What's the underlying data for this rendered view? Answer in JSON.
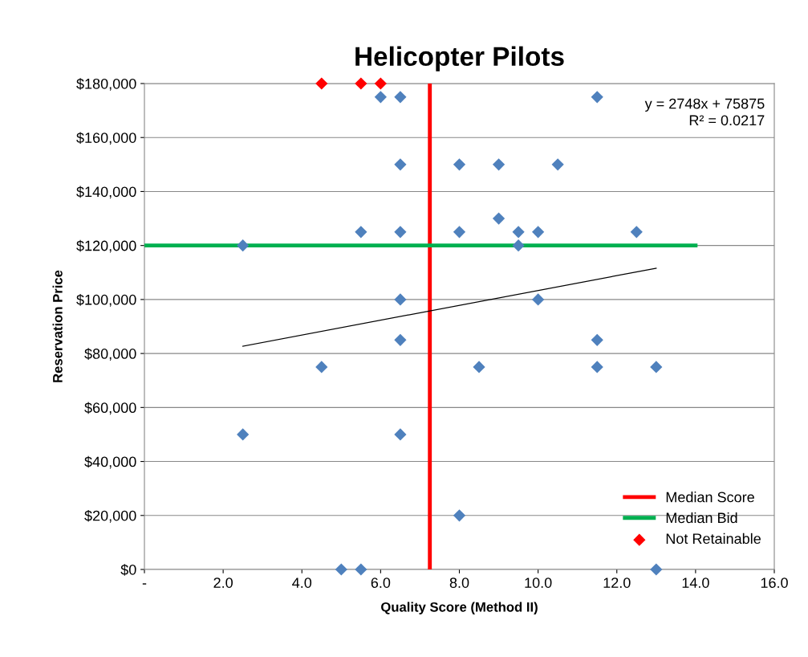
{
  "chart_data": {
    "type": "scatter",
    "title": "Helicopter Pilots",
    "xlabel": "Quality Score (Method II)",
    "ylabel": "Reservation Price",
    "xlim": [
      0,
      16
    ],
    "xticks": [
      {
        "value": 0,
        "label": "-"
      },
      {
        "value": 2,
        "label": "2.0"
      },
      {
        "value": 4,
        "label": "4.0"
      },
      {
        "value": 6,
        "label": "6.0"
      },
      {
        "value": 8,
        "label": "8.0"
      },
      {
        "value": 10,
        "label": "10.0"
      },
      {
        "value": 12,
        "label": "12.0"
      },
      {
        "value": 14,
        "label": "14.0"
      },
      {
        "value": 16,
        "label": "16.0"
      }
    ],
    "ylim": [
      0,
      180000
    ],
    "yticks": [
      {
        "value": 0,
        "label": "$0"
      },
      {
        "value": 20000,
        "label": "$20,000"
      },
      {
        "value": 40000,
        "label": "$40,000"
      },
      {
        "value": 60000,
        "label": "$60,000"
      },
      {
        "value": 80000,
        "label": "$80,000"
      },
      {
        "value": 100000,
        "label": "$100,000"
      },
      {
        "value": 120000,
        "label": "$120,000"
      },
      {
        "value": 140000,
        "label": "$140,000"
      },
      {
        "value": 160000,
        "label": "$160,000"
      },
      {
        "value": 180000,
        "label": "$180,000"
      }
    ],
    "grid": "y",
    "legend": "bottom right",
    "series": [
      {
        "marker": "diamond",
        "color": "#4f81bd",
        "x": [
          6,
          6.5,
          11.5,
          6.5,
          8,
          9,
          10.5,
          9,
          5.5,
          6.5,
          8,
          9.5,
          10,
          12.5,
          2.5,
          9.5,
          6.5,
          10,
          6.5,
          11.5,
          4.5,
          8.5,
          11.5,
          13,
          2.5,
          6.5,
          8,
          5,
          5.5,
          13
        ],
        "values": [
          175000,
          175000,
          175000,
          150000,
          150000,
          150000,
          150000,
          130000,
          125000,
          125000,
          125000,
          125000,
          125000,
          125000,
          120000,
          120000,
          100000,
          100000,
          85000,
          85000,
          75000,
          75000,
          75000,
          75000,
          50000,
          50000,
          20000,
          0,
          0,
          0
        ]
      },
      {
        "type": "line",
        "name": "Median Score",
        "marker": "none",
        "color": "#ff0000",
        "x": [
          7.25,
          7.25
        ],
        "values": [
          0,
          180000
        ]
      },
      {
        "type": "line",
        "name": "Median Bid",
        "marker": "none",
        "color": "#00b050",
        "x": [
          0,
          14
        ],
        "values": [
          120000,
          120000
        ]
      },
      {
        "type": "line",
        "marker": "none",
        "color": "#000000",
        "x": [
          2.5,
          13
        ],
        "values": [
          82700,
          111600
        ]
      },
      {
        "type": "scatter",
        "marker": "diamond",
        "name": "Not Retainable",
        "color": "#ff0000",
        "x": [
          4.5,
          5.5,
          6
        ],
        "values": [
          180000,
          180000,
          180000
        ]
      }
    ],
    "annotations": [
      "y = 2748x + 75875",
      "R² = 0.0217"
    ]
  }
}
